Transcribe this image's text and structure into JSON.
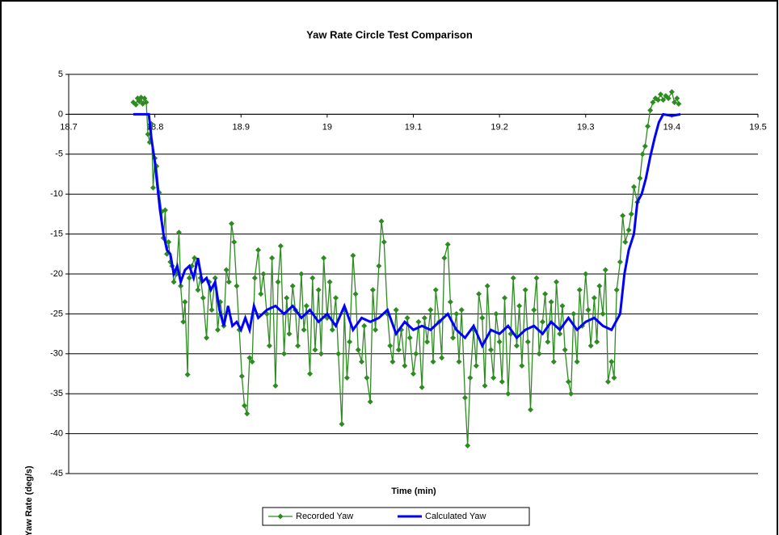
{
  "chart_data": {
    "type": "line",
    "title": "Yaw Rate Circle Test Comparison",
    "xlabel": "Time (min)",
    "ylabel": "Yaw Rate (deg/s)",
    "xlim": [
      18.7,
      19.5
    ],
    "xticks": [
      18.7,
      18.8,
      18.9,
      19,
      19.1,
      19.2,
      19.3,
      19.4,
      19.5
    ],
    "ylim": [
      -45,
      5
    ],
    "yticks": [
      5,
      0,
      -5,
      -10,
      -15,
      -20,
      -25,
      -30,
      -35,
      -40,
      -45
    ],
    "grid": true,
    "legend": "bottom",
    "series": [
      {
        "name": "Recorded Yaw",
        "color": "#2e8b22",
        "marker": "diamond",
        "x": [
          18.775,
          18.778,
          18.78,
          18.782,
          18.784,
          18.786,
          18.788,
          18.79,
          18.792,
          18.794,
          18.796,
          18.798,
          18.8,
          18.802,
          18.805,
          18.808,
          18.81,
          18.812,
          18.814,
          18.816,
          18.818,
          18.82,
          18.822,
          18.825,
          18.828,
          18.83,
          18.833,
          18.835,
          18.838,
          18.84,
          18.843,
          18.846,
          18.85,
          18.853,
          18.856,
          18.86,
          18.863,
          18.866,
          18.87,
          18.873,
          18.876,
          18.88,
          18.883,
          18.886,
          18.889,
          18.892,
          18.895,
          18.898,
          18.901,
          18.904,
          18.907,
          18.91,
          18.913,
          18.916,
          18.92,
          18.923,
          18.926,
          18.93,
          18.933,
          18.936,
          18.94,
          18.943,
          18.946,
          18.95,
          18.953,
          18.956,
          18.96,
          18.963,
          18.966,
          18.97,
          18.973,
          18.976,
          18.98,
          18.983,
          18.986,
          18.99,
          18.993,
          18.996,
          19.0,
          19.003,
          19.006,
          19.01,
          19.013,
          19.017,
          19.02,
          19.023,
          19.026,
          19.03,
          19.033,
          19.036,
          19.04,
          19.043,
          19.046,
          19.05,
          19.053,
          19.056,
          19.06,
          19.063,
          19.066,
          19.07,
          19.073,
          19.076,
          19.08,
          19.083,
          19.086,
          19.09,
          19.093,
          19.096,
          19.1,
          19.103,
          19.106,
          19.11,
          19.113,
          19.116,
          19.12,
          19.123,
          19.126,
          19.13,
          19.133,
          19.136,
          19.14,
          19.143,
          19.146,
          19.15,
          19.153,
          19.156,
          19.16,
          19.163,
          19.166,
          19.17,
          19.173,
          19.176,
          19.18,
          19.183,
          19.186,
          19.19,
          19.193,
          19.196,
          19.2,
          19.203,
          19.206,
          19.21,
          19.213,
          19.216,
          19.22,
          19.223,
          19.226,
          19.23,
          19.233,
          19.236,
          19.24,
          19.243,
          19.246,
          19.25,
          19.253,
          19.256,
          19.26,
          19.263,
          19.266,
          19.27,
          19.273,
          19.276,
          19.28,
          19.283,
          19.286,
          19.29,
          19.293,
          19.296,
          19.3,
          19.303,
          19.306,
          19.31,
          19.313,
          19.316,
          19.32,
          19.323,
          19.326,
          19.33,
          19.333,
          19.336,
          19.34,
          19.343,
          19.346,
          19.35,
          19.353,
          19.356,
          19.36,
          19.363,
          19.366,
          19.369,
          19.372,
          19.375,
          19.378,
          19.381,
          19.384,
          19.387,
          19.39,
          19.393,
          19.396,
          19.4,
          19.403,
          19.406,
          19.408
        ],
        "values": [
          1.5,
          1.2,
          2.0,
          1.6,
          2.1,
          1.3,
          2.0,
          1.5,
          -2.5,
          -3.5,
          -1.2,
          -9.2,
          -5.5,
          -6.5,
          -9.8,
          -12.2,
          -15.5,
          -12.0,
          -17.5,
          -16.0,
          -18.5,
          -19.0,
          -21.0,
          -20.0,
          -14.8,
          -21.5,
          -26.0,
          -23.5,
          -32.6,
          -20.5,
          -19.0,
          -18.0,
          -22.0,
          -20.5,
          -23.0,
          -28.0,
          -21.0,
          -24.5,
          -20.5,
          -27.0,
          -23.5,
          -26.5,
          -19.5,
          -21.0,
          -13.7,
          -16.0,
          -21.5,
          -27.0,
          -32.8,
          -36.5,
          -37.5,
          -30.5,
          -31.0,
          -20.5,
          -17.0,
          -22.5,
          -20.0,
          -25.0,
          -29.0,
          -18.0,
          -34.0,
          -21.0,
          -16.5,
          -30.0,
          -23.0,
          -27.5,
          -21.5,
          -24.5,
          -29.0,
          -20.0,
          -27.0,
          -24.0,
          -32.5,
          -20.5,
          -29.5,
          -22.0,
          -30.0,
          -18.0,
          -25.5,
          -21.0,
          -27.0,
          -23.0,
          -30.0,
          -38.8,
          -24.5,
          -33.0,
          -28.5,
          -17.7,
          -22.5,
          -29.5,
          -31.0,
          -26.5,
          -33.0,
          -36.0,
          -22.0,
          -27.0,
          -19.0,
          -13.4,
          -16.0,
          -25.0,
          -29.0,
          -31.0,
          -24.5,
          -29.5,
          -27.0,
          -31.5,
          -25.5,
          -28.0,
          -32.5,
          -30.0,
          -26.0,
          -34.2,
          -25.5,
          -28.5,
          -24.5,
          -31.0,
          -22.0,
          -26.0,
          -30.5,
          -18.0,
          -16.3,
          -23.5,
          -28.0,
          -25.0,
          -31.0,
          -24.5,
          -35.5,
          -41.5,
          -33.0,
          -27.0,
          -31.5,
          -22.5,
          -25.5,
          -34.0,
          -21.5,
          -29.5,
          -33.0,
          -25.0,
          -28.5,
          -33.5,
          -23.0,
          -35.0,
          -27.5,
          -20.5,
          -29.0,
          -24.0,
          -31.5,
          -22.0,
          -28.5,
          -37.0,
          -24.5,
          -20.5,
          -30.0,
          -26.0,
          -22.5,
          -28.5,
          -23.5,
          -31.0,
          -21.0,
          -27.5,
          -24.0,
          -29.5,
          -33.5,
          -35.0,
          -25.0,
          -31.0,
          -22.0,
          -26.5,
          -20.0,
          -24.5,
          -29.0,
          -23.0,
          -28.5,
          -21.5,
          -25.0,
          -19.5,
          -33.5,
          -31.0,
          -33.0,
          -22.0,
          -18.5,
          -12.7,
          -16.0,
          -14.5,
          -12.5,
          -9.1,
          -11.0,
          -8.0,
          -5.0,
          -4.0,
          -1.5,
          0.5,
          1.5,
          2.0,
          1.8,
          2.5,
          1.8,
          2.3,
          2.0,
          2.8,
          1.5,
          2.0,
          1.3
        ]
      },
      {
        "name": "Calculated Yaw",
        "color": "#0000ff",
        "x": [
          18.775,
          18.793,
          18.796,
          18.8,
          18.803,
          18.806,
          18.81,
          18.814,
          18.818,
          18.822,
          18.826,
          18.83,
          18.835,
          18.84,
          18.845,
          18.85,
          18.855,
          18.86,
          18.865,
          18.87,
          18.875,
          18.88,
          18.885,
          18.89,
          18.895,
          18.9,
          18.905,
          18.91,
          18.915,
          18.92,
          18.93,
          18.94,
          18.95,
          18.96,
          18.97,
          18.98,
          18.99,
          19.0,
          19.01,
          19.02,
          19.03,
          19.04,
          19.05,
          19.06,
          19.07,
          19.08,
          19.09,
          19.1,
          19.11,
          19.12,
          19.13,
          19.14,
          19.15,
          19.16,
          19.17,
          19.18,
          19.19,
          19.2,
          19.21,
          19.22,
          19.23,
          19.24,
          19.25,
          19.26,
          19.27,
          19.28,
          19.29,
          19.3,
          19.31,
          19.32,
          19.33,
          19.34,
          19.345,
          19.35,
          19.356,
          19.36,
          19.365,
          19.37,
          19.375,
          19.38,
          19.385,
          19.39,
          19.4,
          19.41
        ],
        "values": [
          0,
          0,
          -3,
          -6,
          -9,
          -12,
          -15,
          -17,
          -17.5,
          -20,
          -19,
          -21,
          -19.5,
          -19,
          -20.5,
          -18,
          -21,
          -20.5,
          -22,
          -21,
          -24.5,
          -26.5,
          -24,
          -26.5,
          -26,
          -27,
          -25.5,
          -27,
          -24,
          -25.5,
          -24.5,
          -24,
          -25,
          -24,
          -25.5,
          -24.5,
          -26,
          -25,
          -26.5,
          -24,
          -27,
          -25.5,
          -26,
          -25.5,
          -24.5,
          -27.5,
          -26,
          -27,
          -26.5,
          -27,
          -26,
          -25,
          -27,
          -28,
          -26.5,
          -29,
          -27,
          -27.5,
          -26.5,
          -28,
          -27,
          -26.5,
          -27.5,
          -26,
          -27,
          -25.5,
          -27,
          -26,
          -25.5,
          -26.5,
          -27,
          -25,
          -20,
          -17,
          -15,
          -11,
          -10,
          -8,
          -5.3,
          -3,
          -1,
          0,
          -0.2,
          0
        ]
      }
    ]
  }
}
